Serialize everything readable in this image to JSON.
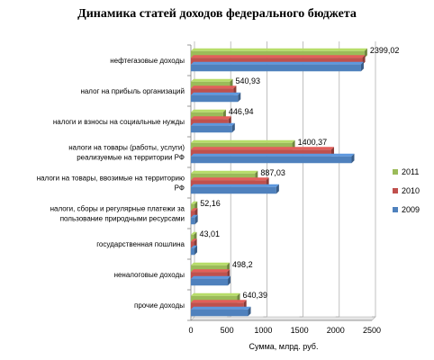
{
  "chart_data": {
    "type": "bar",
    "orientation": "horizontal",
    "title": "Динамика статей доходов федерального бюджета",
    "xlabel": "Сумма, млрд. руб.",
    "ylabel": "",
    "xlim": [
      0,
      2500
    ],
    "xticks": [
      0,
      500,
      1000,
      1500,
      2000,
      2500
    ],
    "grid": true,
    "legend_position": "right",
    "categories": [
      "нефтегазовые доходы",
      "налог на прибыль организаций",
      "налоги и взносы на социальные нужды",
      "налоги на товары (работы, услуги) реализуемые на территории РФ",
      "налоги на товары, ввозимые на территорию РФ",
      "налоги, сборы и регулярные платежи за пользование природными ресурсами",
      "государственная пошлина",
      "неналоговые доходы",
      "прочие доходы"
    ],
    "category_lines": [
      [
        "нефтегазовые доходы"
      ],
      [
        "налог на прибыль организаций"
      ],
      [
        "налоги и взносы на социальные нужды"
      ],
      [
        "налоги на товары (работы, услуги)",
        "реализуемые на территории РФ"
      ],
      [
        "налоги на товары, ввозимые на территорию",
        "РФ"
      ],
      [
        "налоги, сборы и регулярные платежи за",
        "пользование природными ресурсами"
      ],
      [
        "государственная пошлина"
      ],
      [
        "неналоговые доходы"
      ],
      [
        "прочие доходы"
      ]
    ],
    "series": [
      {
        "name": "2011",
        "color": "#9bbb59",
        "values": [
          2399.02,
          540.93,
          446.94,
          1400.37,
          887.03,
          52.16,
          43.01,
          498.2,
          640.39
        ]
      },
      {
        "name": "2010",
        "color": "#c0504d",
        "values": [
          2370,
          590,
          520,
          1940,
          1040,
          55,
          45,
          500,
          730
        ]
      },
      {
        "name": "2009",
        "color": "#4f81bd",
        "values": [
          2350,
          650,
          570,
          2220,
          1180,
          58,
          50,
          510,
          790
        ]
      }
    ],
    "data_labels": [
      "2399,02",
      "540,93",
      "446,94",
      "1400,37",
      "887,03",
      "52,16",
      "43,01",
      "498,2",
      "640,39"
    ],
    "legend_order": [
      "2011",
      "2010",
      "2009"
    ]
  }
}
